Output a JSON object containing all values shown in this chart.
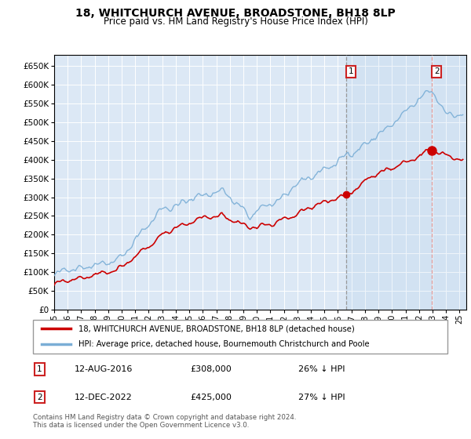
{
  "title": "18, WHITCHURCH AVENUE, BROADSTONE, BH18 8LP",
  "subtitle": "Price paid vs. HM Land Registry's House Price Index (HPI)",
  "legend_line1": "18, WHITCHURCH AVENUE, BROADSTONE, BH18 8LP (detached house)",
  "legend_line2": "HPI: Average price, detached house, Bournemouth Christchurch and Poole",
  "annotation1_label": "1",
  "annotation1_date": "12-AUG-2016",
  "annotation1_price": "£308,000",
  "annotation1_note": "26% ↓ HPI",
  "annotation2_label": "2",
  "annotation2_date": "12-DEC-2022",
  "annotation2_price": "£425,000",
  "annotation2_note": "27% ↓ HPI",
  "vline1_year": 2016.62,
  "vline2_year": 2022.96,
  "purchase1_year": 2016.62,
  "purchase1_price": 308000,
  "purchase2_year": 2022.96,
  "purchase2_price": 425000,
  "hpi_color": "#7aaed6",
  "price_color": "#cc0000",
  "vline1_color": "#999999",
  "vline2_color": "#dd9999",
  "plot_bg": "#dce8f5",
  "grid_color": "#ffffff",
  "ylim": [
    0,
    680000
  ],
  "xlim_start": 1995.0,
  "xlim_end": 2025.5,
  "footer": "Contains HM Land Registry data © Crown copyright and database right 2024.\nThis data is licensed under the Open Government Licence v3.0."
}
